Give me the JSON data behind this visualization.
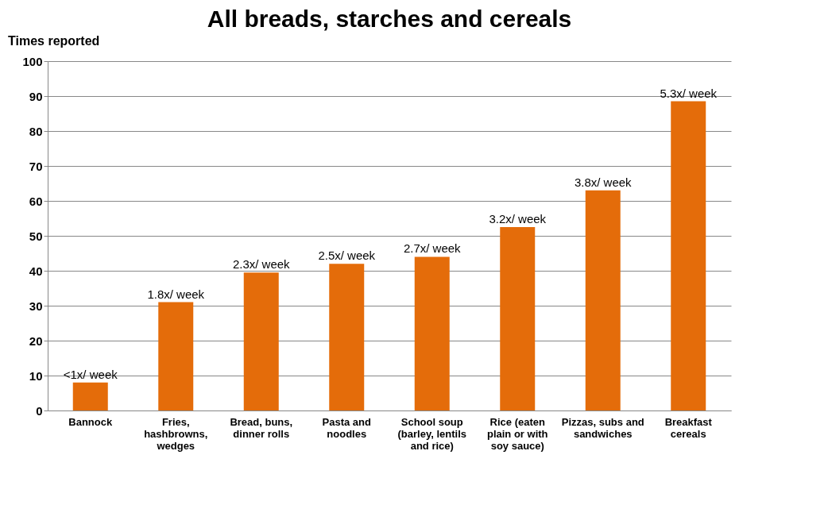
{
  "chart_data": {
    "type": "bar",
    "title": "All breads, starches and cereals",
    "ylabel": "Times reported",
    "categories": [
      "Bannock",
      "Fries, hashbrowns, wedges",
      "Bread, buns, dinner rolls",
      "Pasta and noodles",
      "School soup (barley, lentils and rice)",
      "Rice (eaten plain or with soy sauce)",
      "Pizzas, subs and sandwiches",
      "Breakfast cereals"
    ],
    "values": [
      8,
      31,
      39.5,
      42,
      44,
      52.5,
      63,
      88.5
    ],
    "annotations": [
      {
        "text": "<1x/ week",
        "x": "Bannock",
        "y": 8
      },
      {
        "text": "1.8x/ week",
        "x": "Fries, hashbrowns, wedges",
        "y": 31
      },
      {
        "text": "2.3x/ week",
        "x": "Bread, buns, dinner rolls",
        "y": 39.5
      },
      {
        "text": "2.5x/ week",
        "x": "Pasta and noodles",
        "y": 42
      },
      {
        "text": "2.7x/ week",
        "x": "School soup (barley, lentils and rice)",
        "y": 44
      },
      {
        "text": "3.2x/ week",
        "x": "Rice (eaten plain or with soy sauce)",
        "y": 52.5
      },
      {
        "text": "3.8x/ week",
        "x": "Pizzas, subs and sandwiches",
        "y": 63
      },
      {
        "text": "5.3x/ week",
        "x": "Breakfast cereals",
        "y": 88.5
      }
    ],
    "color": "#e46c0a",
    "ylim": [
      0,
      100
    ],
    "yticks": [
      0,
      10,
      20,
      30,
      40,
      50,
      60,
      70,
      80,
      90,
      100
    ],
    "grid": "y"
  }
}
